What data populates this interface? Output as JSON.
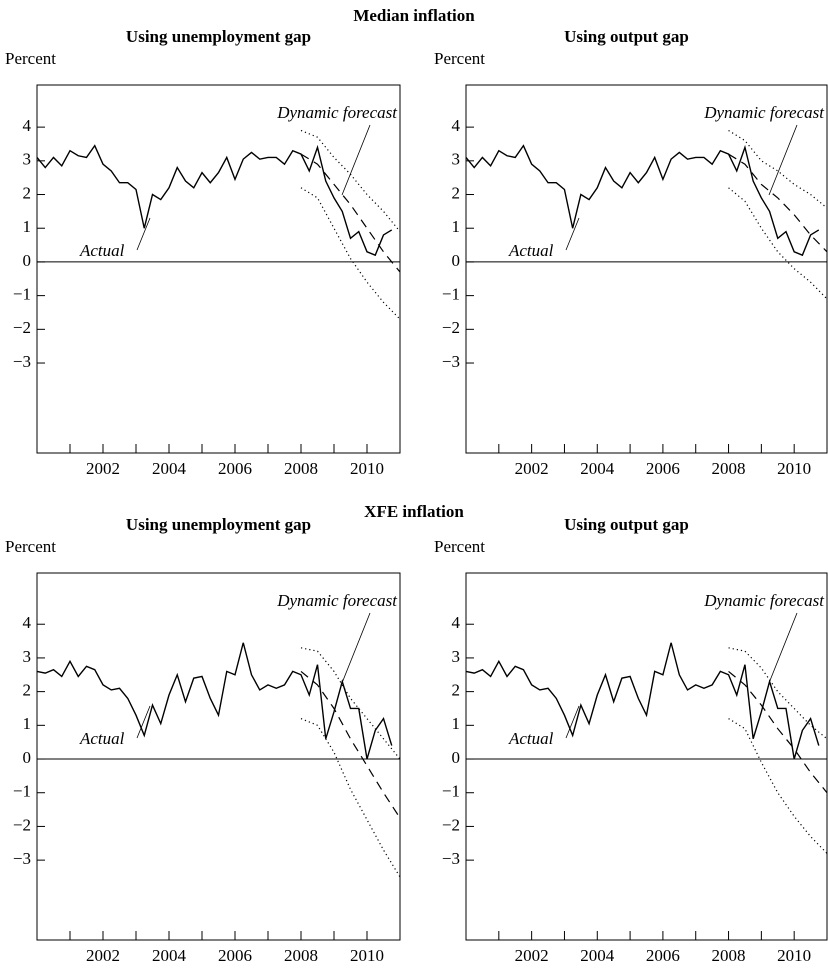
{
  "section_titles": [
    "Median inflation",
    "XFE inflation"
  ],
  "chart_data": [
    {
      "type": "line",
      "title": "Using unemployment gap",
      "ylabel": "Percent",
      "annotations": [
        "Dynamic forecast",
        "Actual"
      ],
      "xlim": [
        2000,
        2011
      ],
      "ylim": [
        -5.67,
        5.25
      ],
      "xticks": [
        2002,
        2004,
        2006,
        2008,
        2010
      ],
      "xminorticks": [
        2001,
        2003,
        2005,
        2007,
        2009
      ],
      "yticks": [
        {
          "value": -3,
          "label": "−3"
        },
        {
          "value": -2,
          "label": "−2"
        },
        {
          "value": -1,
          "label": "−1"
        },
        0,
        1,
        2,
        3,
        4
      ],
      "zero_line": true,
      "series": [
        {
          "color": "#000000",
          "style": "solid",
          "x": [
            2000,
            2000.25,
            2000.5,
            2000.75,
            2001,
            2001.25,
            2001.5,
            2001.75,
            2002,
            2002.25,
            2002.5,
            2002.75,
            2003,
            2003.25,
            2003.5,
            2003.75,
            2004,
            2004.25,
            2004.5,
            2004.75,
            2005,
            2005.25,
            2005.5,
            2005.75,
            2006,
            2006.25,
            2006.5,
            2006.75,
            2007,
            2007.25,
            2007.5,
            2007.75,
            2008,
            2008.25,
            2008.5,
            2008.75,
            2009,
            2009.25,
            2009.5,
            2009.75,
            2010,
            2010.25,
            2010.5,
            2010.75
          ],
          "values": [
            3.1,
            2.8,
            3.1,
            2.85,
            3.3,
            3.15,
            3.1,
            3.45,
            2.9,
            2.7,
            2.35,
            2.35,
            2.15,
            1.0,
            2.0,
            1.85,
            2.2,
            2.8,
            2.4,
            2.2,
            2.65,
            2.35,
            2.65,
            3.1,
            2.45,
            3.05,
            3.25,
            3.05,
            3.1,
            3.1,
            2.9,
            3.3,
            3.2,
            2.7,
            3.4,
            2.4,
            1.9,
            1.5,
            0.7,
            0.9,
            0.3,
            0.2,
            0.8,
            0.95
          ]
        },
        {
          "color": "#000000",
          "style": "dashed",
          "x": [
            2008,
            2008.5,
            2009,
            2009.5,
            2010,
            2010.5,
            2011
          ],
          "values": [
            3.2,
            2.9,
            2.3,
            1.7,
            1.0,
            0.3,
            -0.3
          ]
        },
        {
          "color": "#000000",
          "style": "dotted",
          "x": [
            2008,
            2008.5,
            2009,
            2009.5,
            2010,
            2010.5,
            2011
          ],
          "values": [
            3.9,
            3.7,
            3.1,
            2.6,
            2.0,
            1.5,
            0.9
          ]
        },
        {
          "color": "#000000",
          "style": "dotted",
          "x": [
            2008,
            2008.5,
            2009,
            2009.5,
            2010,
            2010.5,
            2011
          ],
          "values": [
            2.2,
            1.9,
            1.0,
            0.1,
            -0.6,
            -1.2,
            -1.7
          ]
        }
      ]
    },
    {
      "type": "line",
      "title": "Using output gap",
      "ylabel": "Percent",
      "annotations": [
        "Dynamic forecast",
        "Actual"
      ],
      "xlim": [
        2000,
        2011
      ],
      "ylim": [
        -5.67,
        5.25
      ],
      "xticks": [
        2002,
        2004,
        2006,
        2008,
        2010
      ],
      "xminorticks": [
        2001,
        2003,
        2005,
        2007,
        2009
      ],
      "yticks": [
        {
          "value": -3,
          "label": "−3"
        },
        {
          "value": -2,
          "label": "−2"
        },
        {
          "value": -1,
          "label": "−1"
        },
        0,
        1,
        2,
        3,
        4
      ],
      "zero_line": true,
      "series": [
        {
          "color": "#000000",
          "style": "solid",
          "x": [
            2000,
            2000.25,
            2000.5,
            2000.75,
            2001,
            2001.25,
            2001.5,
            2001.75,
            2002,
            2002.25,
            2002.5,
            2002.75,
            2003,
            2003.25,
            2003.5,
            2003.75,
            2004,
            2004.25,
            2004.5,
            2004.75,
            2005,
            2005.25,
            2005.5,
            2005.75,
            2006,
            2006.25,
            2006.5,
            2006.75,
            2007,
            2007.25,
            2007.5,
            2007.75,
            2008,
            2008.25,
            2008.5,
            2008.75,
            2009,
            2009.25,
            2009.5,
            2009.75,
            2010,
            2010.25,
            2010.5,
            2010.75
          ],
          "values": [
            3.1,
            2.8,
            3.1,
            2.85,
            3.3,
            3.15,
            3.1,
            3.45,
            2.9,
            2.7,
            2.35,
            2.35,
            2.15,
            1.0,
            2.0,
            1.85,
            2.2,
            2.8,
            2.4,
            2.2,
            2.65,
            2.35,
            2.65,
            3.1,
            2.45,
            3.05,
            3.25,
            3.05,
            3.1,
            3.1,
            2.9,
            3.3,
            3.2,
            2.7,
            3.4,
            2.4,
            1.9,
            1.5,
            0.7,
            0.9,
            0.3,
            0.2,
            0.8,
            0.95
          ]
        },
        {
          "color": "#000000",
          "style": "dashed",
          "x": [
            2008,
            2008.5,
            2009,
            2009.5,
            2010,
            2010.5,
            2011
          ],
          "values": [
            3.2,
            2.9,
            2.3,
            1.9,
            1.4,
            0.8,
            0.3
          ]
        },
        {
          "color": "#000000",
          "style": "dotted",
          "x": [
            2008,
            2008.5,
            2009,
            2009.5,
            2010,
            2010.5,
            2011
          ],
          "values": [
            3.9,
            3.6,
            3.0,
            2.7,
            2.3,
            2.0,
            1.6
          ]
        },
        {
          "color": "#000000",
          "style": "dotted",
          "x": [
            2008,
            2008.5,
            2009,
            2009.5,
            2010,
            2010.5,
            2011
          ],
          "values": [
            2.2,
            1.8,
            1.0,
            0.3,
            -0.2,
            -0.6,
            -1.1
          ]
        }
      ]
    },
    {
      "type": "line",
      "title": "Using unemployment gap",
      "ylabel": "Percent",
      "annotations": [
        "Dynamic forecast",
        "Actual"
      ],
      "xlim": [
        2000,
        2011
      ],
      "ylim": [
        -5.37,
        5.52
      ],
      "xticks": [
        2002,
        2004,
        2006,
        2008,
        2010
      ],
      "xminorticks": [
        2001,
        2003,
        2005,
        2007,
        2009
      ],
      "yticks": [
        {
          "value": -3,
          "label": "−3"
        },
        {
          "value": -2,
          "label": "−2"
        },
        {
          "value": -1,
          "label": "−1"
        },
        0,
        1,
        2,
        3,
        4
      ],
      "zero_line": true,
      "series": [
        {
          "color": "#000000",
          "style": "solid",
          "x": [
            2000,
            2000.25,
            2000.5,
            2000.75,
            2001,
            2001.25,
            2001.5,
            2001.75,
            2002,
            2002.25,
            2002.5,
            2002.75,
            2003,
            2003.25,
            2003.5,
            2003.75,
            2004,
            2004.25,
            2004.5,
            2004.75,
            2005,
            2005.25,
            2005.5,
            2005.75,
            2006,
            2006.25,
            2006.5,
            2006.75,
            2007,
            2007.25,
            2007.5,
            2007.75,
            2008,
            2008.25,
            2008.5,
            2008.75,
            2009,
            2009.25,
            2009.5,
            2009.75,
            2010,
            2010.25,
            2010.5,
            2010.75
          ],
          "values": [
            2.6,
            2.55,
            2.65,
            2.45,
            2.9,
            2.45,
            2.75,
            2.65,
            2.2,
            2.05,
            2.1,
            1.8,
            1.3,
            0.7,
            1.6,
            1.05,
            1.9,
            2.5,
            1.7,
            2.4,
            2.45,
            1.8,
            1.3,
            2.6,
            2.5,
            3.45,
            2.5,
            2.05,
            2.2,
            2.1,
            2.2,
            2.6,
            2.5,
            1.9,
            2.8,
            0.6,
            1.4,
            2.3,
            1.5,
            1.5,
            0.0,
            0.85,
            1.2,
            0.4
          ]
        },
        {
          "color": "#000000",
          "style": "dashed",
          "x": [
            2008,
            2008.5,
            2009,
            2009.5,
            2010,
            2010.5,
            2011
          ],
          "values": [
            2.6,
            2.2,
            1.5,
            0.6,
            -0.2,
            -1.0,
            -1.75
          ]
        },
        {
          "color": "#000000",
          "style": "dotted",
          "x": [
            2008,
            2008.5,
            2009,
            2009.5,
            2010,
            2010.5,
            2011
          ],
          "values": [
            3.3,
            3.2,
            2.6,
            1.8,
            1.2,
            0.6,
            0.0
          ]
        },
        {
          "color": "#000000",
          "style": "dotted",
          "x": [
            2008,
            2008.5,
            2009,
            2009.5,
            2010,
            2010.5,
            2011
          ],
          "values": [
            1.2,
            1.0,
            0.2,
            -0.9,
            -1.8,
            -2.7,
            -3.5
          ]
        }
      ]
    },
    {
      "type": "line",
      "title": "Using output gap",
      "ylabel": "Percent",
      "annotations": [
        "Dynamic forecast",
        "Actual"
      ],
      "xlim": [
        2000,
        2011
      ],
      "ylim": [
        -5.37,
        5.52
      ],
      "xticks": [
        2002,
        2004,
        2006,
        2008,
        2010
      ],
      "xminorticks": [
        2001,
        2003,
        2005,
        2007,
        2009
      ],
      "yticks": [
        {
          "value": -3,
          "label": "−3"
        },
        {
          "value": -2,
          "label": "−2"
        },
        {
          "value": -1,
          "label": "−1"
        },
        0,
        1,
        2,
        3,
        4
      ],
      "zero_line": true,
      "series": [
        {
          "color": "#000000",
          "style": "solid",
          "x": [
            2000,
            2000.25,
            2000.5,
            2000.75,
            2001,
            2001.25,
            2001.5,
            2001.75,
            2002,
            2002.25,
            2002.5,
            2002.75,
            2003,
            2003.25,
            2003.5,
            2003.75,
            2004,
            2004.25,
            2004.5,
            2004.75,
            2005,
            2005.25,
            2005.5,
            2005.75,
            2006,
            2006.25,
            2006.5,
            2006.75,
            2007,
            2007.25,
            2007.5,
            2007.75,
            2008,
            2008.25,
            2008.5,
            2008.75,
            2009,
            2009.25,
            2009.5,
            2009.75,
            2010,
            2010.25,
            2010.5,
            2010.75
          ],
          "values": [
            2.6,
            2.55,
            2.65,
            2.45,
            2.9,
            2.45,
            2.75,
            2.65,
            2.2,
            2.05,
            2.1,
            1.8,
            1.3,
            0.7,
            1.6,
            1.05,
            1.9,
            2.5,
            1.7,
            2.4,
            2.45,
            1.8,
            1.3,
            2.6,
            2.5,
            3.45,
            2.5,
            2.05,
            2.2,
            2.1,
            2.2,
            2.6,
            2.5,
            1.9,
            2.8,
            0.6,
            1.4,
            2.3,
            1.5,
            1.5,
            0.0,
            0.85,
            1.2,
            0.4
          ]
        },
        {
          "color": "#000000",
          "style": "dashed",
          "x": [
            2008,
            2008.5,
            2009,
            2009.5,
            2010,
            2010.5,
            2011
          ],
          "values": [
            2.6,
            2.2,
            1.6,
            0.9,
            0.3,
            -0.4,
            -1.0
          ]
        },
        {
          "color": "#000000",
          "style": "dotted",
          "x": [
            2008,
            2008.5,
            2009,
            2009.5,
            2010,
            2010.5,
            2011
          ],
          "values": [
            3.3,
            3.2,
            2.7,
            2.0,
            1.5,
            1.0,
            0.6
          ]
        },
        {
          "color": "#000000",
          "style": "dotted",
          "x": [
            2008,
            2008.5,
            2009,
            2009.5,
            2010,
            2010.5,
            2011
          ],
          "values": [
            1.2,
            0.9,
            -0.1,
            -1.0,
            -1.7,
            -2.3,
            -2.8
          ]
        }
      ]
    }
  ]
}
